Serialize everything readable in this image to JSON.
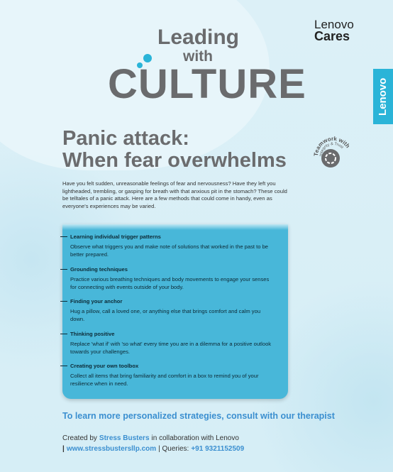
{
  "brand": {
    "line1": "Lenovo",
    "line2": "Cares",
    "side_tab": "Lenovo"
  },
  "banner": {
    "line1": "Leading",
    "line2": "with",
    "line3": "CULTURE"
  },
  "heading": {
    "line1": "Panic attack:",
    "line2": "When fear overwhelms"
  },
  "badge": {
    "line1": "Teamwork with",
    "line2": "Integrity & Trust"
  },
  "intro": "Have you felt sudden, unreasonable feelings of fear and nervousness? Have they left you lightheaded, trembling, or gasping for breath with that anxious pit in the stomach? These could be telltales of a panic attack. Here are a few methods that could come in handy, even as everyone's experiences may be varied.",
  "methods": [
    {
      "title": "Learning individual trigger patterns",
      "text": "Observe what triggers you and make note of solutions that worked in the past to be better prepared."
    },
    {
      "title": "Grounding techniques",
      "text": "Practice various breathing techniques and body movements to engage your senses for connecting with events outside of your body."
    },
    {
      "title": "Finding your anchor",
      "text": "Hug a pillow, call a loved one, or anything else that brings comfort and calm you down."
    },
    {
      "title": "Thinking positive",
      "text": "Replace 'what if' with 'so what' every time you are in a dilemma for a positive outlook towards your challenges."
    },
    {
      "title": "Creating your own toolbox",
      "text": "Collect all items that bring familiarity and comfort in a box to remind you of your resilience when in need."
    }
  ],
  "cta": "To learn more personalized strategies, consult with our therapist",
  "footer": {
    "line1": {
      "prefix": "Created by",
      "org": "Stress Busters",
      "suffix": "in collaboration with Lenovo"
    },
    "line2": {
      "sep1": "|",
      "website": "www.stressbustersllp.com",
      "sep2": "| Queries:",
      "phone": "+91 9321152509"
    }
  }
}
